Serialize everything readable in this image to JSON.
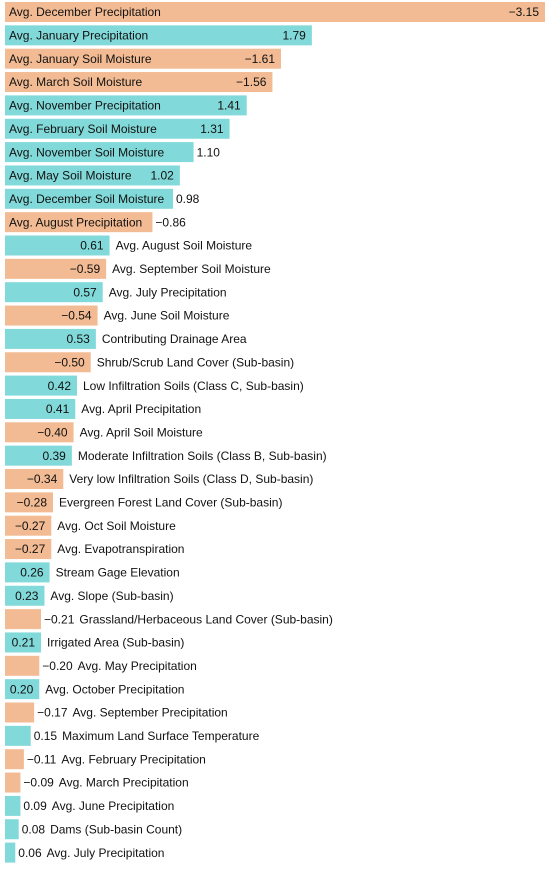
{
  "chart_data": {
    "type": "bar",
    "orientation": "horizontal",
    "categories": [
      "Avg. December Precipitation",
      "Avg. January Precipitation",
      "Avg. January Soil Moisture",
      "Avg. March Soil Moisture",
      "Avg. November Precipitation",
      "Avg. February Soil Moisture",
      "Avg. November Soil Moisture",
      "Avg. May Soil Moisture",
      "Avg. December Soil Moisture",
      "Avg. August Precipitation",
      "Avg. August Soil Moisture",
      "Avg. September Soil Moisture",
      "Avg. July Precipitation",
      "Avg. June Soil Moisture",
      "Contributing Drainage Area",
      "Shrub/Scrub Land Cover (Sub-basin)",
      "Low Infiltration Soils (Class C, Sub-basin)",
      "Avg. April Precipitation",
      "Avg. April Soil Moisture",
      "Moderate Infiltration Soils (Class B, Sub-basin)",
      "Very low Infiltration Soils (Class D, Sub-basin)",
      "Evergreen Forest Land Cover (Sub-basin)",
      "Avg. Oct Soil Moisture",
      "Avg. Evapotranspiration",
      "Stream Gage Elevation",
      "Avg. Slope (Sub-basin)",
      "Grassland/Herbaceous Land Cover (Sub-basin)",
      "Irrigated Area (Sub-basin)",
      "Avg. May Precipitation",
      "Avg. October Precipitation",
      "Avg. September Precipitation",
      "Maximum Land Surface Temperature",
      "Avg. February Precipitation",
      "Avg. March Precipitation",
      "Avg. June Precipitation",
      "Dams (Sub-basin Count)",
      "Avg. July Precipitation"
    ],
    "values": [
      -3.15,
      1.79,
      -1.61,
      -1.56,
      1.41,
      1.31,
      1.1,
      1.02,
      0.98,
      -0.86,
      0.61,
      -0.59,
      0.57,
      -0.54,
      0.53,
      -0.5,
      0.42,
      0.41,
      -0.4,
      0.39,
      -0.34,
      -0.28,
      -0.27,
      -0.27,
      0.26,
      0.23,
      -0.21,
      0.21,
      -0.2,
      0.2,
      -0.17,
      0.15,
      -0.11,
      -0.09,
      0.09,
      0.08,
      0.06
    ],
    "value_labels": [
      "−3.15",
      "1.79",
      "−1.61",
      "−1.56",
      "1.41",
      "1.31",
      "1.10",
      "1.02",
      "0.98",
      "−0.86",
      "0.61",
      "−0.59",
      "0.57",
      "−0.54",
      "0.53",
      "−0.50",
      "0.42",
      "0.41",
      "−0.40",
      "0.39",
      "−0.34",
      "−0.28",
      "−0.27",
      "−0.27",
      "0.26",
      "0.23",
      "−0.21",
      "0.21",
      "−0.20",
      "0.20",
      "−0.17",
      "0.15",
      "−0.11",
      "−0.09",
      "0.09",
      "0.08",
      "0.06"
    ],
    "positive_color": "#82d9d9",
    "negative_color": "#f2bb93"
  }
}
